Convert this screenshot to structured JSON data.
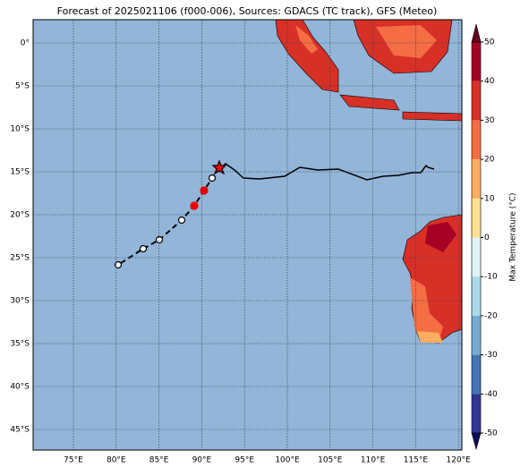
{
  "title": "Forecast of 2025021106 (f000-006), Sources: GDACS (TC track), GFS (Meteo)",
  "map": {
    "lon_ticks": [
      "75°E",
      "80°E",
      "85°E",
      "90°E",
      "95°E",
      "100°E",
      "105°E",
      "110°E",
      "115°E",
      "120°E"
    ],
    "lat_ticks": [
      "0°",
      "5°S",
      "10°S",
      "15°S",
      "20°S",
      "25°S",
      "30°S",
      "35°S",
      "40°S",
      "45°S"
    ]
  },
  "colorbar": {
    "label": "Max Temperature (°C)",
    "ticks": [
      50,
      40,
      30,
      20,
      10,
      0,
      -10,
      -20,
      -30,
      -40,
      -50
    ]
  }
}
